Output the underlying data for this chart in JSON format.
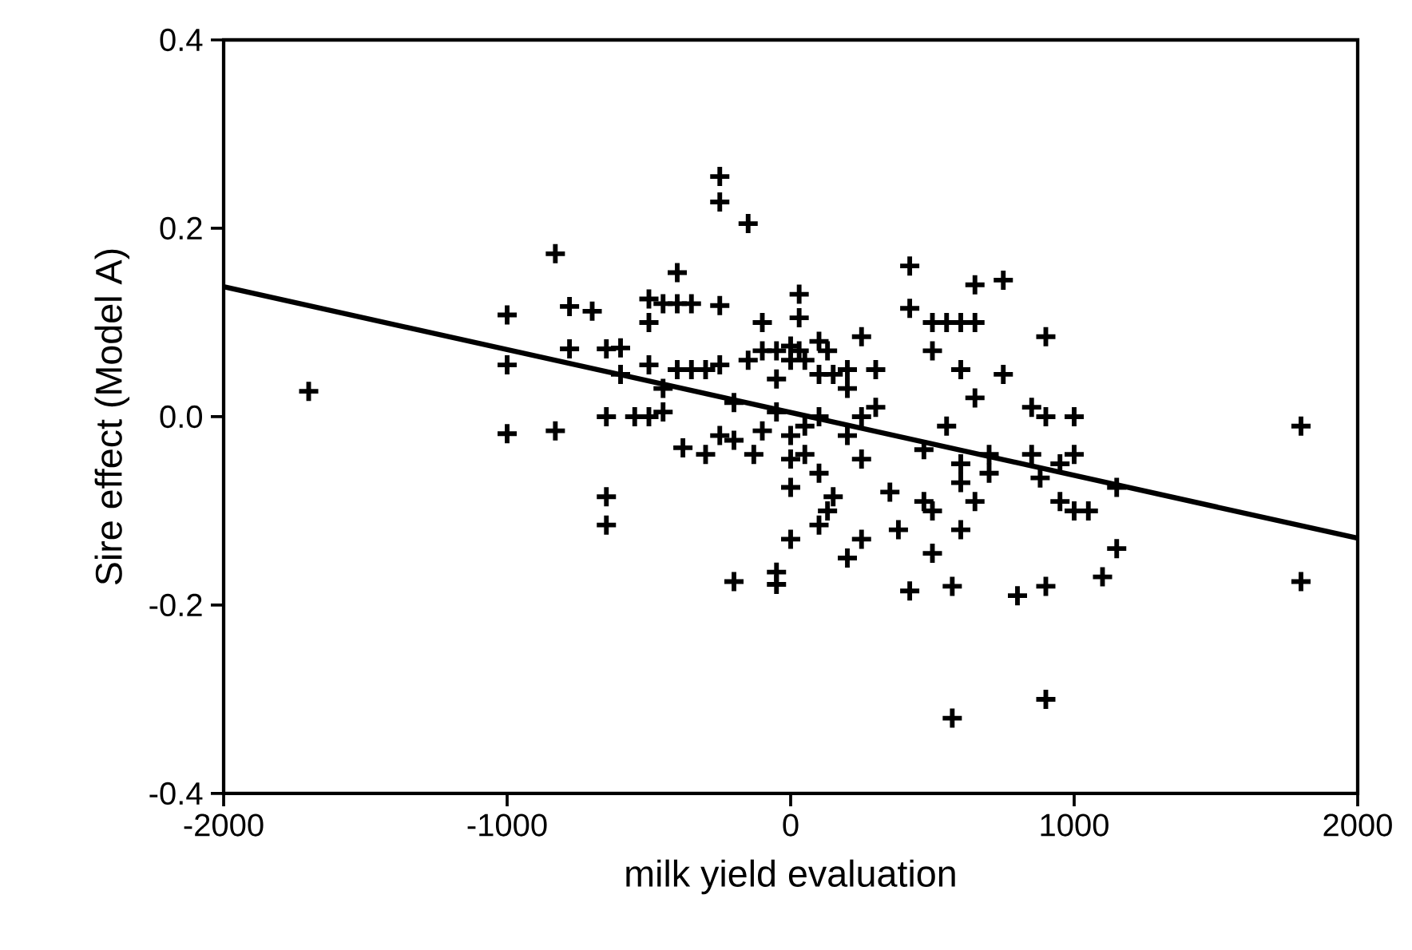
{
  "chart_data": {
    "type": "scatter",
    "xlabel": "milk yield evaluation",
    "ylabel": "Sire effect (Model A)",
    "xlim": [
      -2000,
      2000
    ],
    "ylim": [
      -0.4,
      0.4
    ],
    "xticks": [
      -2000,
      -1000,
      0,
      1000,
      2000
    ],
    "yticks": [
      -0.4,
      -0.2,
      {
        "value": 0,
        "label": "0.0"
      },
      0.2,
      0.4
    ],
    "grid": false,
    "marker": "cross",
    "series": [
      {
        "color": "#000000",
        "x": [
          -1700,
          -1000,
          -1000,
          -1000,
          -830,
          -830,
          -780,
          -780,
          -700,
          -650,
          -650,
          -650,
          -650,
          -600,
          -600,
          -550,
          -500,
          -500,
          -500,
          -500,
          -450,
          -450,
          -450,
          -400,
          -400,
          -400,
          -380,
          -350,
          -350,
          -300,
          -300,
          -250,
          -250,
          -250,
          -250,
          -250,
          -200,
          -200,
          -200,
          -150,
          -150,
          -130,
          -100,
          -100,
          -100,
          -50,
          -50,
          -50,
          -50,
          -50,
          0,
          0,
          0,
          0,
          0,
          0,
          30,
          30,
          30,
          50,
          50,
          50,
          100,
          100,
          100,
          100,
          100,
          130,
          130,
          150,
          150,
          200,
          200,
          200,
          200,
          250,
          250,
          250,
          250,
          300,
          300,
          350,
          380,
          420,
          420,
          420,
          470,
          470,
          500,
          500,
          500,
          500,
          550,
          550,
          570,
          570,
          600,
          600,
          600,
          600,
          600,
          650,
          650,
          650,
          650,
          700,
          700,
          750,
          750,
          800,
          850,
          850,
          880,
          900,
          900,
          900,
          900,
          950,
          950,
          1000,
          1000,
          1000,
          1050,
          1100,
          1150,
          1150,
          1800,
          1800
        ],
        "values": [
          0.027,
          0.108,
          0.055,
          -0.018,
          0.173,
          -0.015,
          0.117,
          0.072,
          0.112,
          0.072,
          0.0,
          -0.085,
          -0.115,
          0.073,
          0.045,
          0.0,
          0.125,
          0.1,
          0.055,
          0.0,
          0.12,
          0.03,
          0.005,
          0.153,
          0.12,
          0.05,
          -0.033,
          0.12,
          0.05,
          0.05,
          -0.04,
          0.255,
          0.228,
          0.118,
          0.055,
          -0.02,
          -0.175,
          0.015,
          -0.025,
          0.205,
          0.06,
          -0.04,
          0.1,
          0.07,
          -0.015,
          0.07,
          0.04,
          0.005,
          -0.165,
          -0.178,
          0.075,
          0.06,
          -0.02,
          -0.045,
          -0.075,
          -0.13,
          0.13,
          0.105,
          0.07,
          0.06,
          -0.01,
          -0.04,
          0.08,
          0.045,
          0.0,
          -0.115,
          -0.06,
          0.07,
          -0.1,
          0.045,
          -0.085,
          0.05,
          0.03,
          -0.02,
          -0.15,
          0.085,
          0.0,
          -0.045,
          -0.13,
          0.05,
          0.01,
          -0.08,
          -0.12,
          0.16,
          0.115,
          -0.185,
          -0.035,
          -0.09,
          0.1,
          0.07,
          -0.145,
          -0.1,
          0.1,
          -0.01,
          -0.32,
          -0.18,
          0.1,
          0.05,
          -0.05,
          -0.07,
          -0.12,
          0.14,
          0.1,
          0.02,
          -0.09,
          -0.04,
          -0.06,
          0.145,
          0.045,
          -0.19,
          0.01,
          -0.04,
          -0.065,
          0.085,
          0.0,
          -0.18,
          -0.3,
          -0.09,
          -0.05,
          0.0,
          -0.04,
          -0.1,
          -0.1,
          -0.17,
          -0.075,
          -0.14,
          -0.01,
          -0.175
        ]
      },
      {
        "type": "line",
        "color": "#000000",
        "marker": "none",
        "line_style": "solid",
        "x": [
          -2000,
          2000
        ],
        "values": [
          0.138,
          -0.129
        ]
      }
    ]
  }
}
